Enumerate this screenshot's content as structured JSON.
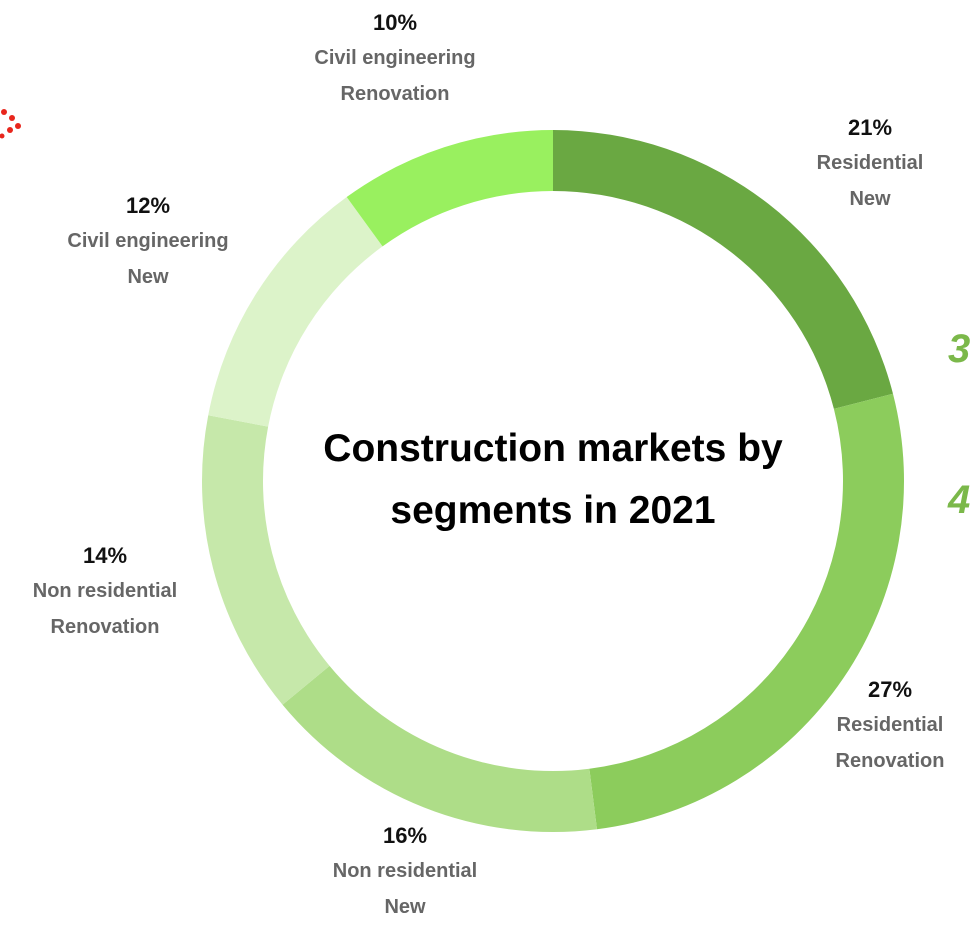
{
  "chart_data": {
    "type": "donut",
    "title": "Construction markets by segments in 2021",
    "categories": [
      [
        "Residential",
        "New"
      ],
      [
        "Residential",
        "Renovation"
      ],
      [
        "Non residential",
        "New"
      ],
      [
        "Non residential",
        "Renovation"
      ],
      [
        "Civil engineering",
        "New"
      ],
      [
        "Civil engineering",
        "Renovation"
      ]
    ],
    "values": [
      21,
      27,
      16,
      14,
      12,
      10
    ],
    "value_labels": [
      "21%",
      "27%",
      "16%",
      "14%",
      "12%",
      "10%"
    ],
    "colors": [
      "#6aa842",
      "#8ccc5c",
      "#aedd88",
      "#c6e8aa",
      "#dcf3c9",
      "#99f05f"
    ],
    "annotations": [
      "3",
      "4"
    ]
  }
}
